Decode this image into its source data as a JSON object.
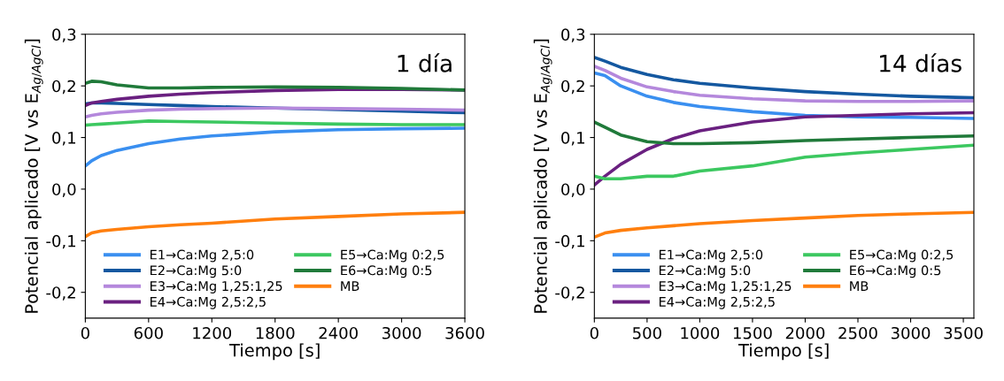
{
  "chart_data": [
    {
      "type": "line",
      "title": "1 día",
      "xlabel": "Tiempo [s]",
      "ylabel": "Potencial aplicado [V vs E$_{Ag/AgCl}$]",
      "x": [
        0,
        60,
        150,
        300,
        600,
        900,
        1200,
        1800,
        2400,
        3000,
        3600
      ],
      "xlim": [
        0,
        3600
      ],
      "xticks": [
        0,
        600,
        1200,
        1800,
        2400,
        3000,
        3600
      ],
      "ylim": [
        -0.25,
        0.3
      ],
      "yticks": [
        {
          "value": -0.2,
          "label": "-0,2"
        },
        {
          "value": -0.1,
          "label": "-0,1"
        },
        {
          "value": 0,
          "label": "0,0"
        },
        {
          "value": 0.1,
          "label": "0,1"
        },
        {
          "value": 0.2,
          "label": "0,2"
        },
        {
          "value": 0.3,
          "label": "0,3"
        }
      ],
      "grid": false,
      "legend": "bottom",
      "marker": "none",
      "line_style": "solid",
      "series": [
        {
          "name": "E1→Ca:Mg 2,5:0",
          "color": "#3a8ff0",
          "values": [
            0.045,
            0.055,
            0.065,
            0.075,
            0.088,
            0.097,
            0.103,
            0.111,
            0.115,
            0.117,
            0.118
          ]
        },
        {
          "name": "E2→Ca:Mg 5:0",
          "color": "#1458a0",
          "values": [
            0.165,
            0.167,
            0.167,
            0.166,
            0.164,
            0.162,
            0.16,
            0.157,
            0.154,
            0.151,
            0.148
          ]
        },
        {
          "name": "E3→Ca:Mg 1,25:1,25",
          "color": "#b488dc",
          "values": [
            0.14,
            0.143,
            0.146,
            0.149,
            0.153,
            0.155,
            0.156,
            0.157,
            0.156,
            0.155,
            0.153
          ]
        },
        {
          "name": "E4→Ca:Mg 2,5:2,5",
          "color": "#6a2080",
          "values": [
            0.162,
            0.167,
            0.17,
            0.174,
            0.18,
            0.184,
            0.187,
            0.191,
            0.193,
            0.193,
            0.192
          ]
        },
        {
          "name": "E5→Ca:Mg 0:2,5",
          "color": "#3cc860",
          "values": [
            0.124,
            0.125,
            0.126,
            0.128,
            0.132,
            0.131,
            0.13,
            0.128,
            0.126,
            0.125,
            0.125
          ]
        },
        {
          "name": "E6→Ca:Mg 0:5",
          "color": "#207a3a",
          "values": [
            0.205,
            0.209,
            0.208,
            0.202,
            0.196,
            0.196,
            0.197,
            0.198,
            0.197,
            0.195,
            0.192
          ]
        },
        {
          "name": "MB",
          "color": "#ff7f0e",
          "values": [
            -0.092,
            -0.085,
            -0.081,
            -0.078,
            -0.073,
            -0.069,
            -0.066,
            -0.058,
            -0.053,
            -0.048,
            -0.045
          ]
        }
      ]
    },
    {
      "type": "line",
      "title": "14 días",
      "xlabel": "Tiempo [s]",
      "ylabel": "Potencial aplicado [V vs E$_{Ag/AgCl}$]",
      "x": [
        0,
        100,
        250,
        500,
        750,
        1000,
        1500,
        2000,
        2500,
        3000,
        3600
      ],
      "xlim": [
        0,
        3600
      ],
      "xticks": [
        0,
        500,
        1000,
        1500,
        2000,
        2500,
        3000,
        3500
      ],
      "ylim": [
        -0.25,
        0.3
      ],
      "yticks": [
        {
          "value": -0.2,
          "label": "-0,2"
        },
        {
          "value": -0.1,
          "label": "-0,1"
        },
        {
          "value": 0,
          "label": "0,0"
        },
        {
          "value": 0.1,
          "label": "0,1"
        },
        {
          "value": 0.2,
          "label": "0,2"
        },
        {
          "value": 0.3,
          "label": "0,3"
        }
      ],
      "grid": false,
      "legend": "bottom",
      "marker": "none",
      "line_style": "solid",
      "series": [
        {
          "name": "E1→Ca:Mg 2,5:0",
          "color": "#3a8ff0",
          "values": [
            0.225,
            0.22,
            0.2,
            0.18,
            0.168,
            0.16,
            0.15,
            0.143,
            0.14,
            0.139,
            0.137
          ]
        },
        {
          "name": "E2→Ca:Mg 5:0",
          "color": "#1458a0",
          "values": [
            0.255,
            0.248,
            0.236,
            0.222,
            0.212,
            0.205,
            0.196,
            0.189,
            0.184,
            0.18,
            0.177
          ]
        },
        {
          "name": "E3→Ca:Mg 1,25:1,25",
          "color": "#b488dc",
          "values": [
            0.238,
            0.23,
            0.215,
            0.198,
            0.189,
            0.182,
            0.175,
            0.171,
            0.17,
            0.17,
            0.171
          ]
        },
        {
          "name": "E4→Ca:Mg 2,5:2,5",
          "color": "#6a2080",
          "values": [
            0.008,
            0.025,
            0.048,
            0.077,
            0.098,
            0.113,
            0.13,
            0.14,
            0.143,
            0.146,
            0.148
          ]
        },
        {
          "name": "E5→Ca:Mg 0:2,5",
          "color": "#3cc860",
          "values": [
            0.025,
            0.02,
            0.02,
            0.025,
            0.025,
            0.035,
            0.045,
            0.062,
            0.07,
            0.077,
            0.085
          ]
        },
        {
          "name": "E6→Ca:Mg 0:5",
          "color": "#207a3a",
          "values": [
            0.13,
            0.12,
            0.105,
            0.092,
            0.088,
            0.088,
            0.09,
            0.094,
            0.097,
            0.1,
            0.103
          ]
        },
        {
          "name": "MB",
          "color": "#ff7f0e",
          "values": [
            -0.093,
            -0.085,
            -0.08,
            -0.075,
            -0.071,
            -0.067,
            -0.061,
            -0.056,
            -0.051,
            -0.048,
            -0.045
          ]
        }
      ]
    }
  ]
}
